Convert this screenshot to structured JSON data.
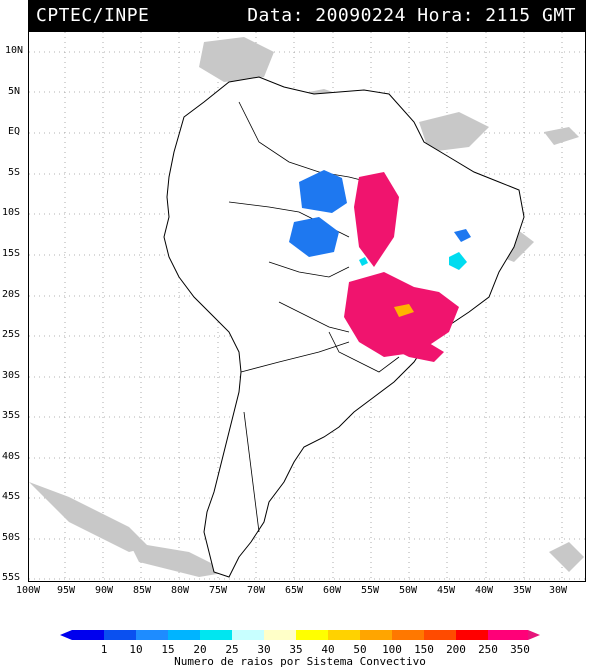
{
  "header": {
    "source": "CPTEC/INPE",
    "datetime": "Data: 20090224 Hora: 2115 GMT"
  },
  "lat_labels": [
    "10N",
    "5N",
    "EQ",
    "5S",
    "10S",
    "15S",
    "20S",
    "25S",
    "30S",
    "35S",
    "40S",
    "45S",
    "50S",
    "55S"
  ],
  "lon_labels": [
    "100W",
    "95W",
    "90W",
    "85W",
    "80W",
    "75W",
    "70W",
    "65W",
    "60W",
    "55W",
    "50W",
    "45W",
    "40W",
    "35W",
    "30W"
  ],
  "colorbar": {
    "ticks": [
      "1",
      "10",
      "15",
      "20",
      "25",
      "30",
      "35",
      "40",
      "50",
      "100",
      "150",
      "200",
      "250",
      "350"
    ],
    "colors": [
      "#0000ee",
      "#0a50f0",
      "#1e8cff",
      "#00b4ff",
      "#00e6f0",
      "#c8ffff",
      "#ffffc8",
      "#ffff00",
      "#ffd200",
      "#ffa500",
      "#ff7800",
      "#ff4b00",
      "#ff0000",
      "#ff0078",
      "#e6147a"
    ],
    "title": "Numero de raios por Sistema Convectivo"
  },
  "legend_colors": {
    "blue": "#1e78f0",
    "magenta": "#f0146e",
    "cyan": "#00dcf0",
    "orange": "#ffb400",
    "cloud": "#c8c8c8"
  }
}
